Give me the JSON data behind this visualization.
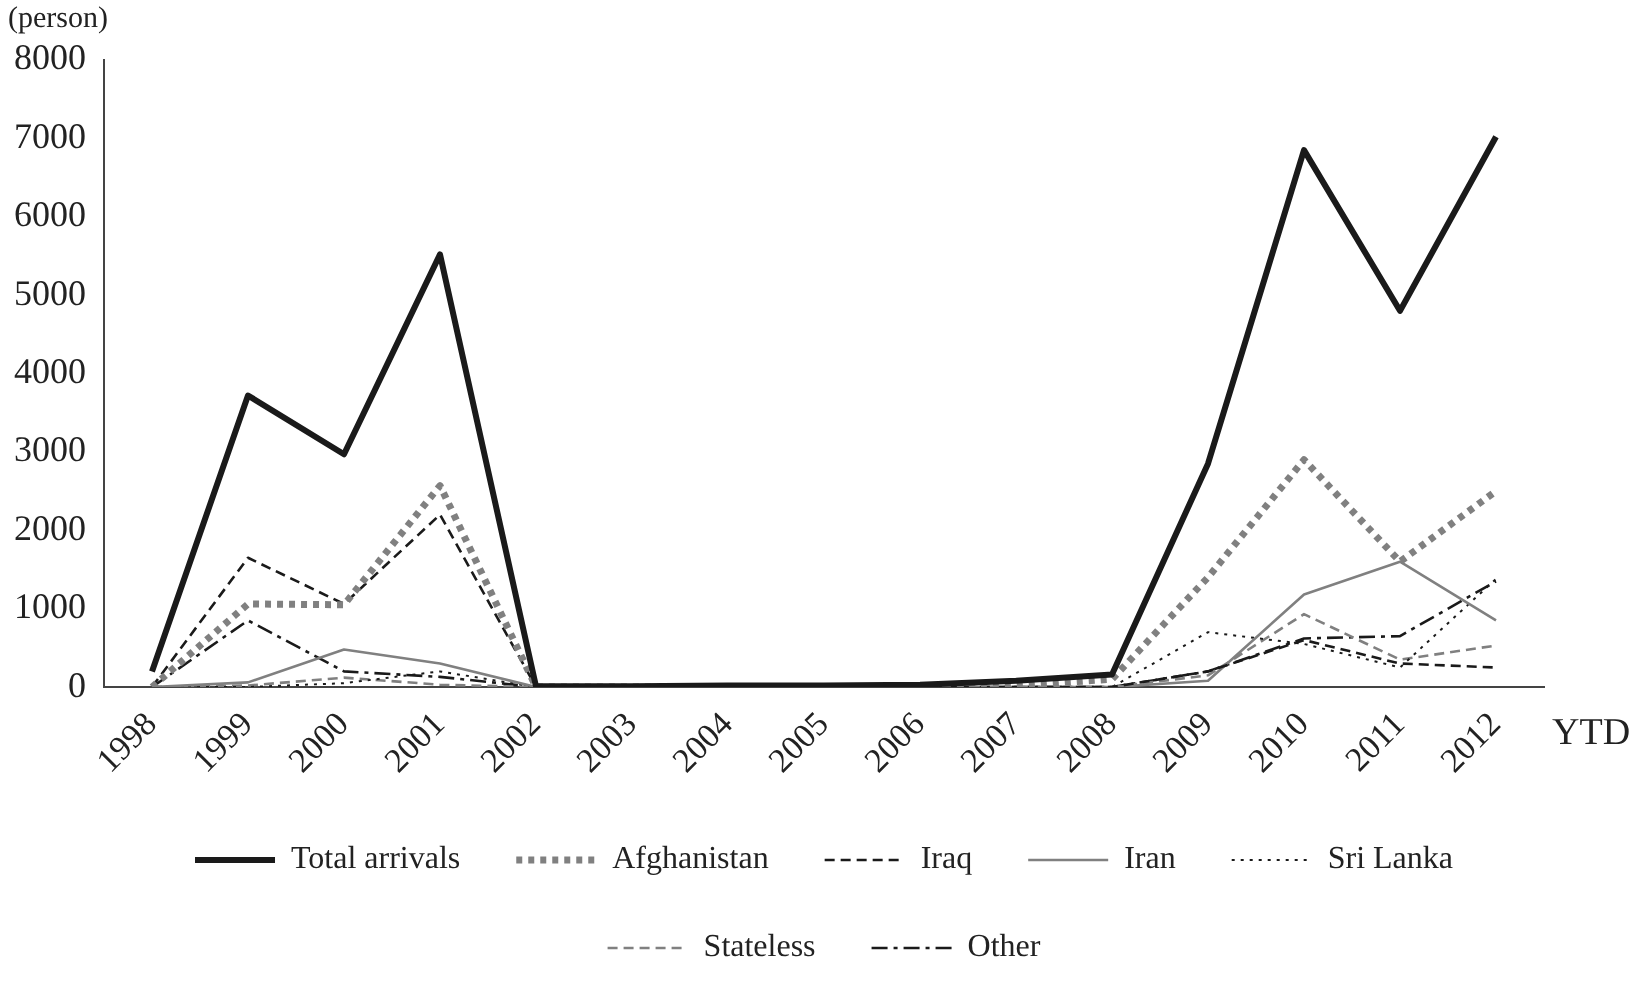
{
  "chart_data": {
    "type": "line",
    "ylabel": "(person)",
    "xlabel": "YTD",
    "categories": [
      "1998",
      "1999",
      "2000",
      "2001",
      "2002",
      "2003",
      "2004",
      "2005",
      "2006",
      "2007",
      "2008",
      "2009",
      "2010",
      "2011",
      "2012"
    ],
    "ylim": [
      0,
      8000
    ],
    "yticks": [
      0,
      1000,
      2000,
      3000,
      4000,
      5000,
      6000,
      7000,
      8000
    ],
    "grid": false,
    "legend": "bottom",
    "marker": "none",
    "series": [
      {
        "name": "Total arrivals",
        "color": "#1a1a1a",
        "line_style": "solid",
        "values": [
          200,
          3720,
          2970,
          5520,
          10,
          10,
          20,
          20,
          30,
          80,
          160,
          2850,
          6850,
          4800,
          7020
        ]
      },
      {
        "name": "Afghanistan",
        "color": "#808080",
        "line_style": "dotted",
        "values": [
          0,
          1060,
          1050,
          2570,
          0,
          0,
          0,
          0,
          0,
          20,
          100,
          1400,
          2900,
          1600,
          2500
        ]
      },
      {
        "name": "Iraq",
        "color": "#1a1a1a",
        "line_style": "dashed",
        "values": [
          0,
          1650,
          1060,
          2200,
          0,
          0,
          0,
          0,
          0,
          0,
          0,
          200,
          600,
          300,
          250
        ]
      },
      {
        "name": "Iran",
        "color": "#808080",
        "line_style": "solid",
        "values": [
          0,
          60,
          480,
          300,
          0,
          0,
          0,
          0,
          0,
          0,
          0,
          80,
          1180,
          1600,
          850
        ]
      },
      {
        "name": "Sri Lanka",
        "color": "#1a1a1a",
        "line_style": "dotted",
        "values": [
          0,
          0,
          50,
          200,
          0,
          0,
          0,
          0,
          0,
          0,
          0,
          700,
          550,
          250,
          1380
        ]
      },
      {
        "name": "Stateless",
        "color": "#808080",
        "line_style": "dashed",
        "values": [
          0,
          20,
          120,
          30,
          0,
          0,
          0,
          0,
          0,
          0,
          0,
          150,
          930,
          350,
          530
        ]
      },
      {
        "name": "Other",
        "color": "#1a1a1a",
        "line_style": "dashdot",
        "values": [
          0,
          850,
          200,
          130,
          0,
          0,
          0,
          0,
          0,
          0,
          0,
          200,
          620,
          650,
          1350
        ]
      }
    ]
  }
}
